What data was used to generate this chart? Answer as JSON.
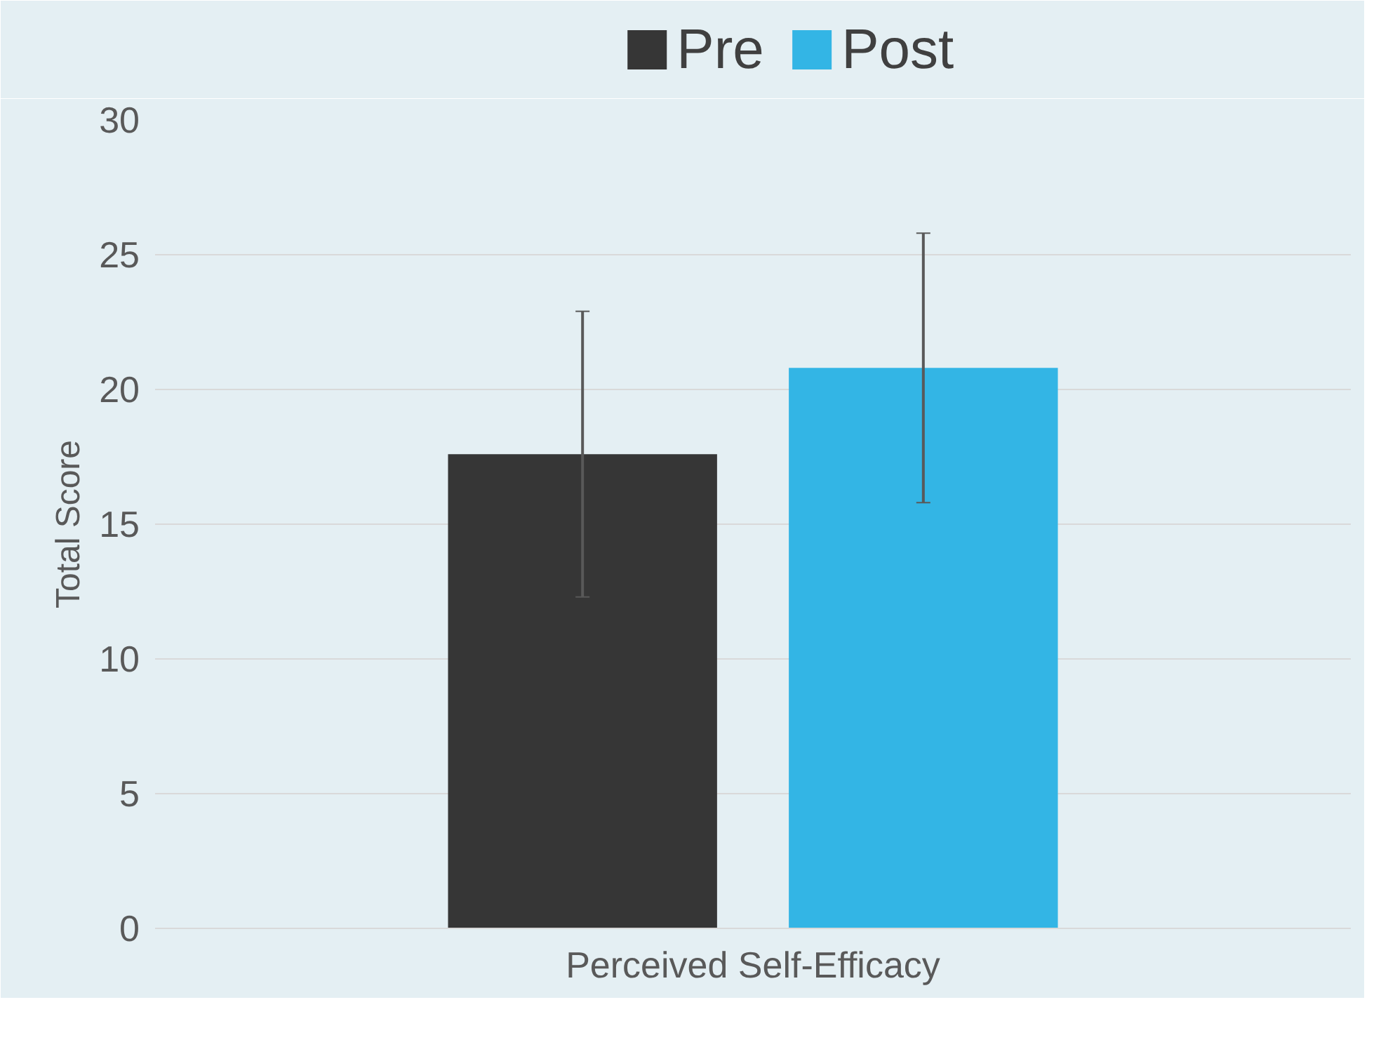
{
  "chart_data": {
    "type": "bar",
    "ylabel": "Total Score",
    "categories": [
      "Perceived Self-Efficacy"
    ],
    "series": [
      {
        "name": "Pre",
        "color": "#363636",
        "values": [
          17.6
        ],
        "errors": [
          [
            12.3,
            22.9
          ]
        ]
      },
      {
        "name": "Post",
        "color": "#33b5e5",
        "values": [
          20.8
        ],
        "errors": [
          [
            15.8,
            25.8
          ]
        ]
      }
    ],
    "ylim": [
      0,
      30
    ],
    "yticks": [
      0,
      5,
      10,
      15,
      20,
      25,
      30
    ],
    "grid": "y",
    "legend": "top"
  }
}
